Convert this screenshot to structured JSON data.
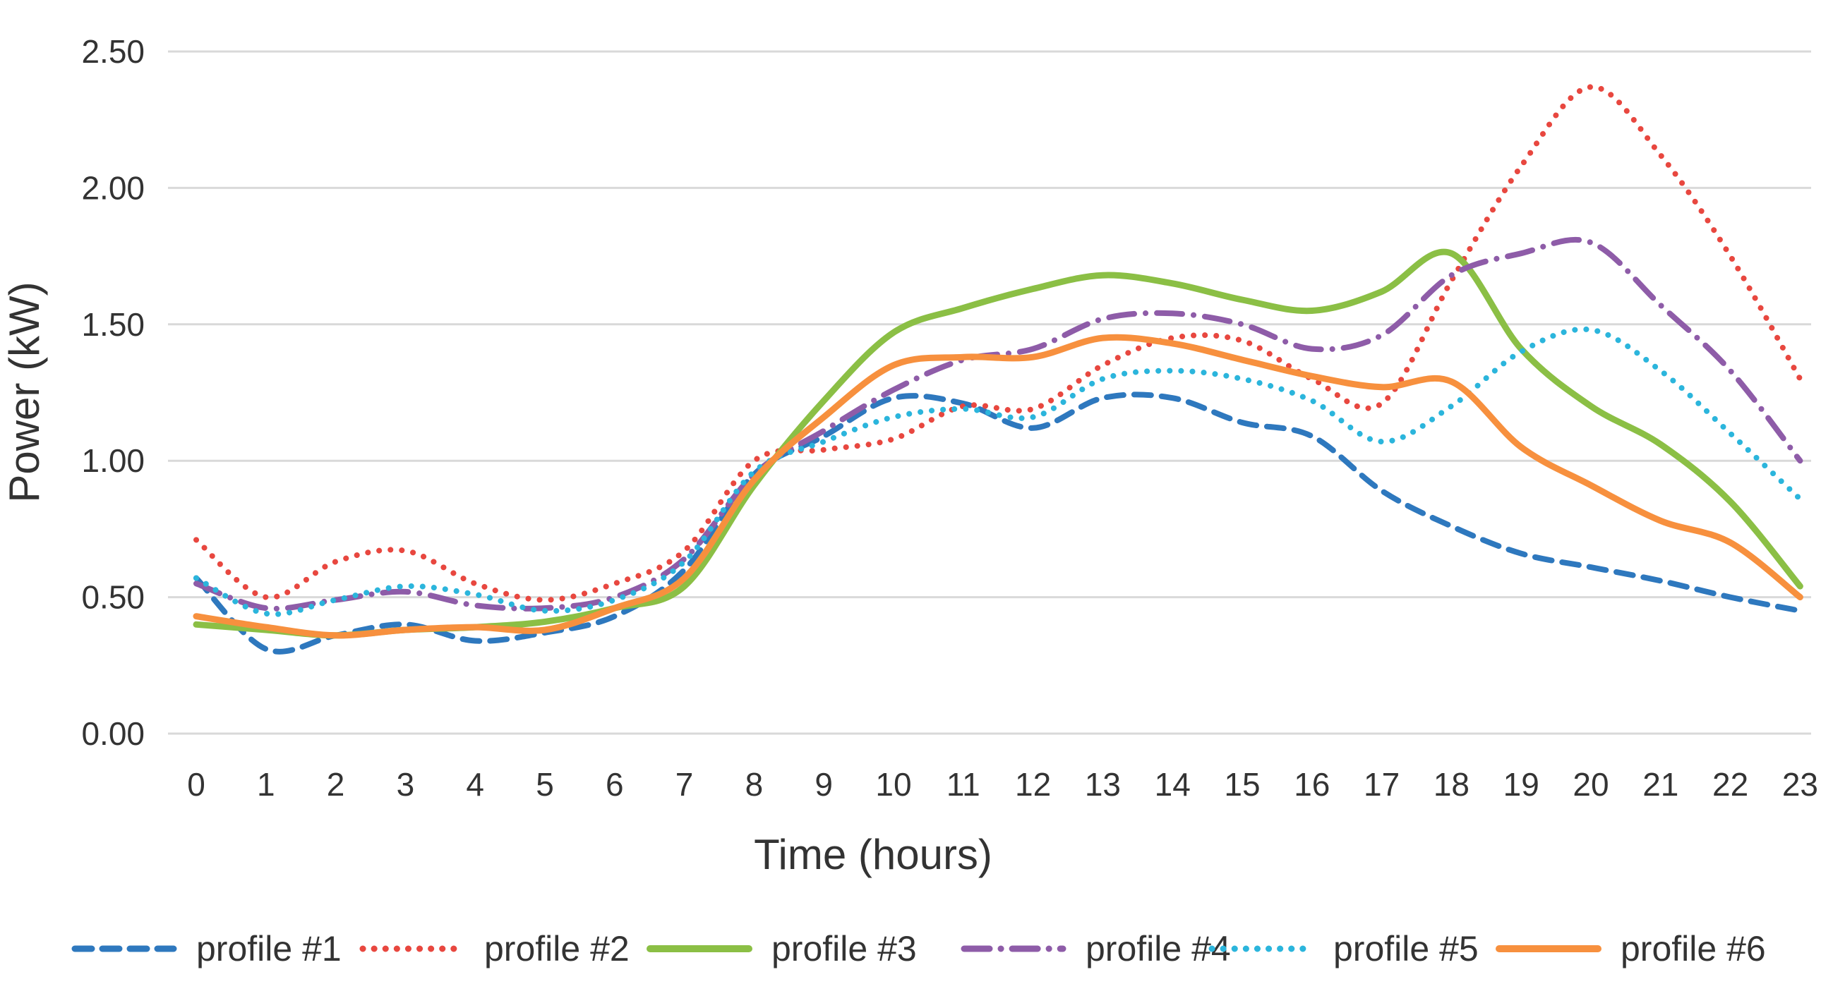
{
  "chart_data": {
    "type": "line",
    "title": "",
    "xlabel": "Time (hours)",
    "ylabel": "Power (kW)",
    "xlim": [
      0,
      23
    ],
    "ylim": [
      0,
      2.5
    ],
    "grid": "horizontal",
    "legend_position": "bottom",
    "x": [
      0,
      1,
      2,
      3,
      4,
      5,
      6,
      7,
      8,
      9,
      10,
      11,
      12,
      13,
      14,
      15,
      16,
      17,
      18,
      19,
      20,
      21,
      22,
      23
    ],
    "ytick_values": [
      0,
      0.5,
      1.0,
      1.5,
      2.0,
      2.5
    ],
    "ytick_labels": [
      "0.00",
      "0.50",
      "1.00",
      "1.50",
      "2.00",
      "2.50"
    ],
    "series": [
      {
        "name": "profile #1",
        "color": "#2E78BE",
        "style": "dashed",
        "values": [
          0.57,
          0.31,
          0.36,
          0.4,
          0.34,
          0.37,
          0.43,
          0.6,
          0.95,
          1.09,
          1.23,
          1.21,
          1.12,
          1.23,
          1.23,
          1.14,
          1.09,
          0.89,
          0.76,
          0.66,
          0.61,
          0.56,
          0.5,
          0.45
        ]
      },
      {
        "name": "profile #2",
        "color": "#E8473F",
        "style": "dotted",
        "values": [
          0.71,
          0.5,
          0.63,
          0.67,
          0.55,
          0.49,
          0.55,
          0.67,
          1.0,
          1.04,
          1.08,
          1.2,
          1.19,
          1.35,
          1.45,
          1.44,
          1.3,
          1.21,
          1.66,
          2.08,
          2.37,
          2.12,
          1.75,
          1.3
        ]
      },
      {
        "name": "profile #3",
        "color": "#8BBF45",
        "style": "solid",
        "values": [
          0.4,
          0.38,
          0.36,
          0.38,
          0.39,
          0.41,
          0.46,
          0.54,
          0.91,
          1.22,
          1.47,
          1.56,
          1.63,
          1.68,
          1.65,
          1.59,
          1.55,
          1.62,
          1.76,
          1.41,
          1.2,
          1.06,
          0.85,
          0.54
        ]
      },
      {
        "name": "profile #4",
        "color": "#8E5CA8",
        "style": "dashdot",
        "values": [
          0.55,
          0.46,
          0.49,
          0.52,
          0.47,
          0.46,
          0.5,
          0.64,
          0.95,
          1.11,
          1.26,
          1.37,
          1.41,
          1.52,
          1.54,
          1.5,
          1.41,
          1.46,
          1.68,
          1.76,
          1.8,
          1.57,
          1.33,
          1.0
        ]
      },
      {
        "name": "profile #5",
        "color": "#2BB5DC",
        "style": "dotted",
        "values": [
          0.57,
          0.44,
          0.49,
          0.54,
          0.51,
          0.45,
          0.49,
          0.63,
          0.96,
          1.07,
          1.16,
          1.19,
          1.16,
          1.3,
          1.33,
          1.3,
          1.22,
          1.07,
          1.2,
          1.4,
          1.48,
          1.33,
          1.1,
          0.86
        ]
      },
      {
        "name": "profile #6",
        "color": "#F7903E",
        "style": "solid",
        "values": [
          0.43,
          0.39,
          0.36,
          0.38,
          0.39,
          0.38,
          0.46,
          0.57,
          0.93,
          1.16,
          1.35,
          1.38,
          1.38,
          1.45,
          1.43,
          1.37,
          1.31,
          1.27,
          1.29,
          1.05,
          0.91,
          0.78,
          0.7,
          0.5
        ]
      }
    ],
    "colors": {
      "grid": "#D9D9D9",
      "text": "#333333"
    },
    "legend": {
      "items": [
        "profile #1",
        "profile #2",
        "profile #3",
        "profile #4",
        "profile #5",
        "profile #6"
      ]
    }
  }
}
